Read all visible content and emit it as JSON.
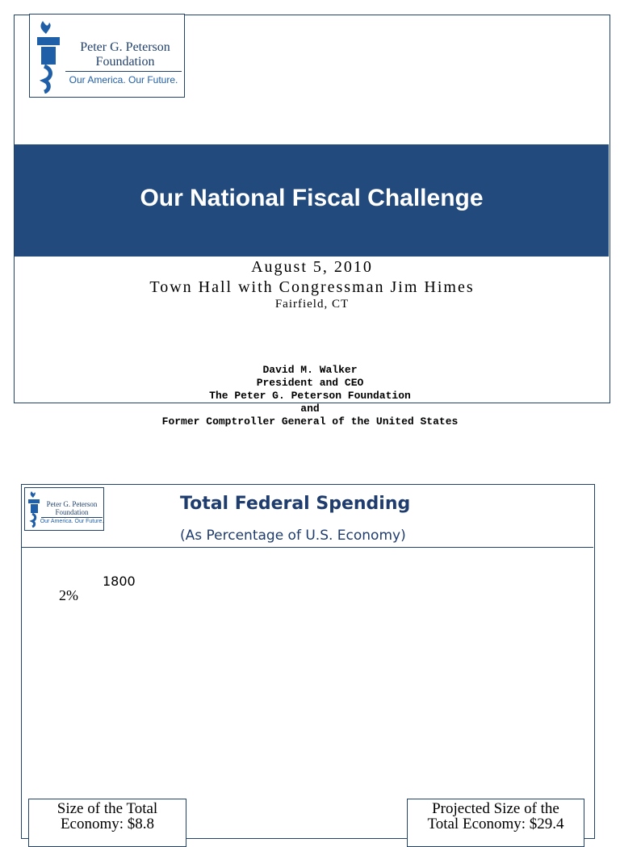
{
  "slide1": {
    "logo": {
      "name_line1": "Peter G. Peterson",
      "name_line2": "Foundation",
      "tagline": "Our America. Our Future."
    },
    "title": "Our National Fiscal Challenge",
    "date": "August 5, 2010",
    "event": "Town Hall with Congressman Jim Himes",
    "location": "Fairfield, CT",
    "speaker": [
      "David M. Walker",
      "President and CEO",
      "The Peter G. Peterson Foundation",
      "and",
      "Former Comptroller General of the United States"
    ]
  },
  "slide2": {
    "logo": {
      "name_line1": "Peter G. Peterson",
      "name_line2": "Foundation",
      "tagline": "Our America. Our Future."
    },
    "title": "Total Federal Spending",
    "subtitle": "(As Percentage of U.S. Economy)",
    "year_label": "1800",
    "percent_label": "2%",
    "left_box": [
      "Size of the Total",
      "Economy: $8.8"
    ],
    "right_box": [
      "Projected Size of the",
      "Total Economy: $29.4"
    ]
  }
}
